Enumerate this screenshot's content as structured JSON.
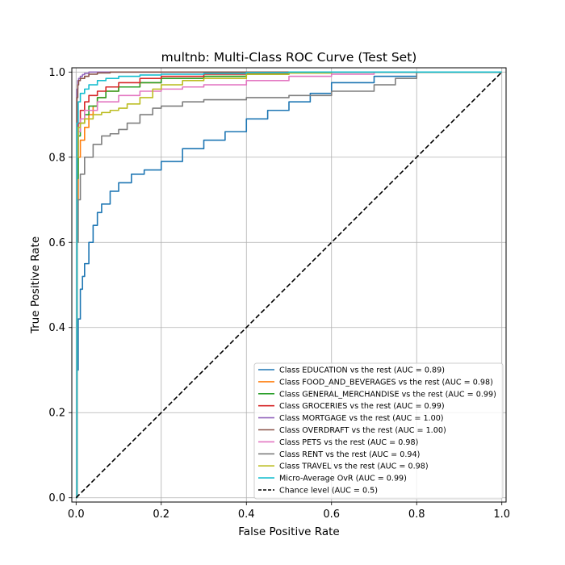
{
  "chart_data": {
    "type": "line",
    "title": "multnb: Multi-Class ROC Curve (Test Set)",
    "xlabel": "False Positive Rate",
    "ylabel": "True Positive Rate",
    "xlim": [
      -0.01,
      1.01
    ],
    "ylim": [
      -0.01,
      1.01
    ],
    "xticks": [
      0.0,
      0.2,
      0.4,
      0.6,
      0.8,
      1.0
    ],
    "yticks": [
      0.0,
      0.2,
      0.4,
      0.6,
      0.8,
      1.0
    ],
    "xtick_labels": [
      "0.0",
      "0.2",
      "0.4",
      "0.6",
      "0.8",
      "1.0"
    ],
    "ytick_labels": [
      "0.0",
      "0.2",
      "0.4",
      "0.6",
      "0.8",
      "1.0"
    ],
    "grid": true,
    "legend_position": "lower-right",
    "series": [
      {
        "name": "Class EDUCATION vs the rest (AUC = 0.89)",
        "color": "#1f77b4",
        "dash": "solid",
        "x": [
          0,
          0.002,
          0.005,
          0.01,
          0.015,
          0.02,
          0.03,
          0.04,
          0.05,
          0.06,
          0.08,
          0.1,
          0.13,
          0.16,
          0.2,
          0.25,
          0.3,
          0.35,
          0.4,
          0.45,
          0.5,
          0.55,
          0.6,
          0.7,
          0.8,
          1.0
        ],
        "y": [
          0,
          0.3,
          0.42,
          0.49,
          0.52,
          0.55,
          0.6,
          0.64,
          0.67,
          0.69,
          0.72,
          0.74,
          0.76,
          0.77,
          0.79,
          0.82,
          0.84,
          0.86,
          0.89,
          0.91,
          0.93,
          0.95,
          0.975,
          0.99,
          1.0,
          1.0
        ]
      },
      {
        "name": "Class FOOD_AND_BEVERAGES vs the rest (AUC = 0.98)",
        "color": "#ff7f0e",
        "dash": "solid",
        "x": [
          0,
          0.002,
          0.005,
          0.01,
          0.02,
          0.03,
          0.04,
          0.05,
          0.07,
          0.1,
          0.15,
          0.2,
          0.3,
          0.4,
          0.5,
          0.6,
          1.0
        ],
        "y": [
          0,
          0.7,
          0.8,
          0.84,
          0.87,
          0.9,
          0.92,
          0.94,
          0.955,
          0.965,
          0.975,
          0.985,
          0.99,
          0.995,
          0.998,
          1.0,
          1.0
        ]
      },
      {
        "name": "Class GENERAL_MERCHANDISE vs the rest (AUC = 0.99)",
        "color": "#2ca02c",
        "dash": "solid",
        "x": [
          0,
          0.002,
          0.005,
          0.01,
          0.02,
          0.03,
          0.05,
          0.07,
          0.1,
          0.15,
          0.2,
          0.3,
          0.4,
          0.5,
          0.6,
          1.0
        ],
        "y": [
          0,
          0.75,
          0.85,
          0.88,
          0.9,
          0.92,
          0.94,
          0.955,
          0.965,
          0.975,
          0.985,
          0.99,
          0.995,
          0.998,
          1.0,
          1.0
        ]
      },
      {
        "name": "Class GROCERIES vs the rest (AUC = 0.99)",
        "color": "#d62728",
        "dash": "solid",
        "x": [
          0,
          0.002,
          0.005,
          0.01,
          0.02,
          0.03,
          0.05,
          0.07,
          0.1,
          0.15,
          0.2,
          0.3,
          0.4,
          0.5,
          1.0
        ],
        "y": [
          0,
          0.8,
          0.88,
          0.91,
          0.93,
          0.945,
          0.955,
          0.965,
          0.975,
          0.985,
          0.99,
          0.995,
          0.998,
          1.0,
          1.0
        ]
      },
      {
        "name": "Class MORTGAGE vs the rest (AUC = 1.00)",
        "color": "#9467bd",
        "dash": "solid",
        "x": [
          0,
          0.002,
          0.004,
          0.006,
          0.01,
          0.015,
          0.02,
          0.03,
          0.05,
          0.1,
          1.0
        ],
        "y": [
          0,
          0.96,
          0.98,
          0.985,
          0.99,
          0.994,
          0.997,
          1.0,
          1.0,
          1.0,
          1.0
        ]
      },
      {
        "name": "Class OVERDRAFT vs the rest (AUC = 1.00)",
        "color": "#8c564b",
        "dash": "solid",
        "x": [
          0,
          0.002,
          0.004,
          0.006,
          0.01,
          0.02,
          0.03,
          0.05,
          0.08,
          0.1,
          1.0
        ],
        "y": [
          0,
          0.94,
          0.97,
          0.98,
          0.985,
          0.99,
          0.995,
          0.998,
          1.0,
          1.0,
          1.0
        ]
      },
      {
        "name": "Class PETS vs the rest (AUC = 0.98)",
        "color": "#e377c2",
        "dash": "solid",
        "x": [
          0,
          0.002,
          0.005,
          0.01,
          0.02,
          0.05,
          0.1,
          0.15,
          0.2,
          0.25,
          0.3,
          0.4,
          0.5,
          0.6,
          0.7,
          1.0
        ],
        "y": [
          0,
          0.8,
          0.86,
          0.89,
          0.91,
          0.93,
          0.945,
          0.955,
          0.96,
          0.965,
          0.97,
          0.98,
          0.99,
          0.995,
          1.0,
          1.0
        ]
      },
      {
        "name": "Class RENT vs the rest (AUC = 0.94)",
        "color": "#7f7f7f",
        "dash": "solid",
        "x": [
          0,
          0.002,
          0.005,
          0.01,
          0.02,
          0.04,
          0.06,
          0.08,
          0.1,
          0.12,
          0.15,
          0.18,
          0.2,
          0.25,
          0.3,
          0.4,
          0.5,
          0.6,
          0.7,
          0.75,
          0.8,
          1.0
        ],
        "y": [
          0,
          0.6,
          0.7,
          0.76,
          0.8,
          0.83,
          0.85,
          0.855,
          0.865,
          0.88,
          0.9,
          0.915,
          0.92,
          0.93,
          0.935,
          0.94,
          0.945,
          0.955,
          0.97,
          0.985,
          1.0,
          1.0
        ]
      },
      {
        "name": "Class TRAVEL vs the rest (AUC = 0.98)",
        "color": "#bcbd22",
        "dash": "solid",
        "x": [
          0,
          0.002,
          0.005,
          0.01,
          0.02,
          0.04,
          0.06,
          0.08,
          0.1,
          0.12,
          0.15,
          0.18,
          0.2,
          0.25,
          0.3,
          0.4,
          0.5,
          0.6,
          1.0
        ],
        "y": [
          0,
          0.8,
          0.87,
          0.88,
          0.89,
          0.9,
          0.905,
          0.91,
          0.915,
          0.925,
          0.94,
          0.96,
          0.97,
          0.98,
          0.985,
          0.995,
          0.998,
          1.0,
          1.0
        ]
      },
      {
        "name": "Micro-Average OvR (AUC = 0.99)",
        "color": "#17becf",
        "dash": "solid",
        "x": [
          0,
          0.002,
          0.005,
          0.01,
          0.02,
          0.03,
          0.05,
          0.07,
          0.1,
          0.15,
          0.2,
          0.3,
          0.4,
          0.5,
          1.0
        ],
        "y": [
          0,
          0.88,
          0.93,
          0.95,
          0.96,
          0.97,
          0.98,
          0.985,
          0.99,
          0.993,
          0.995,
          0.997,
          0.999,
          1.0,
          1.0
        ]
      },
      {
        "name": "Chance level (AUC = 0.5)",
        "color": "#000000",
        "dash": "dashed",
        "x": [
          0,
          1
        ],
        "y": [
          0,
          1
        ]
      }
    ]
  }
}
